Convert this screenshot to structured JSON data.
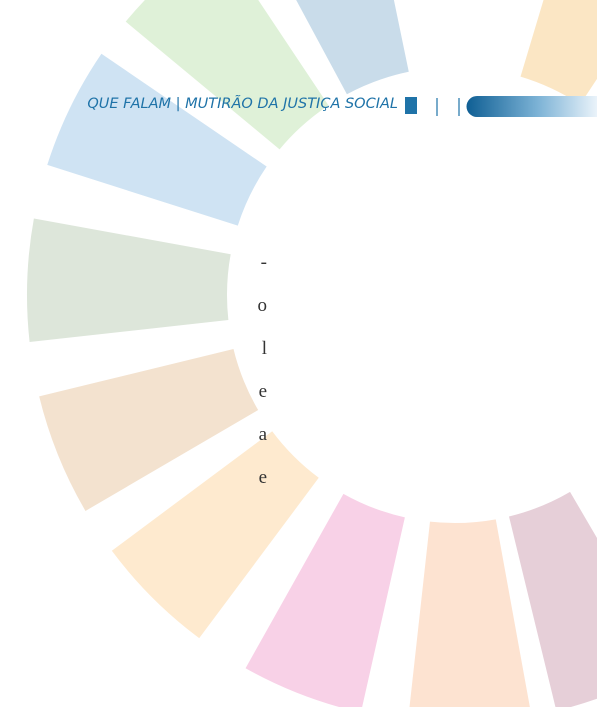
{
  "header": {
    "running_title": "QUE FALAM | MUTIRÃO DA JUSTIÇA SOCIAL"
  },
  "body": {
    "line_ends": [
      "-",
      "o",
      "l",
      "e",
      "a",
      "e"
    ]
  }
}
